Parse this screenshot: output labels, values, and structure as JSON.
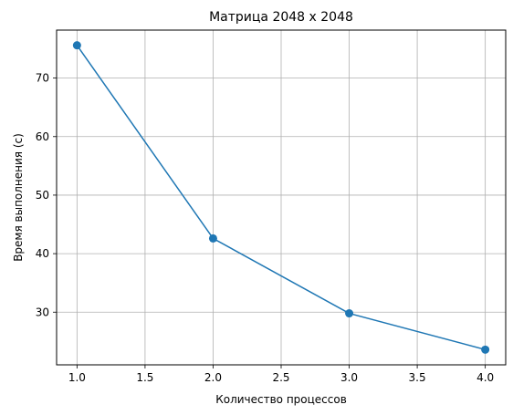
{
  "chart_data": {
    "type": "line",
    "title": "Матрица 2048 x 2048",
    "xlabel": "Количество процессов",
    "ylabel": "Время выполнения (с)",
    "x": [
      1.0,
      2.0,
      3.0,
      4.0
    ],
    "series": [
      {
        "values": [
          75.6,
          42.6,
          29.8,
          23.6
        ],
        "color": "#1f77b4",
        "marker": "circle"
      }
    ],
    "xlim": [
      0.85,
      4.15
    ],
    "ylim": [
      21.0,
      78.2
    ],
    "xticks": [
      "1.0",
      "1.5",
      "2.0",
      "2.5",
      "3.0",
      "3.5",
      "4.0"
    ],
    "yticks": [
      "30",
      "40",
      "50",
      "60",
      "70"
    ],
    "grid": true
  }
}
